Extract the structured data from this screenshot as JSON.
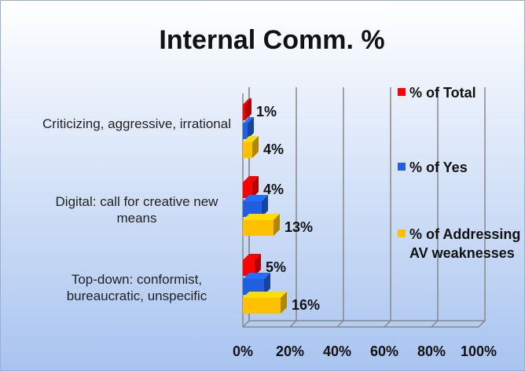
{
  "chart_data": {
    "type": "bar3d_horizontal",
    "title": "Internal Comm. %",
    "categories": [
      "Criticizing, aggressive, irrational",
      "Digital: call for creative new means",
      "Top-down: conformist, bureaucratic, unspecific"
    ],
    "series": [
      {
        "name": "% of Total",
        "color": "#ff0000",
        "values": [
          1,
          4,
          5
        ],
        "value_labels": [
          "1%",
          "4%",
          "5%"
        ]
      },
      {
        "name": "% of Yes",
        "color": "#1f5fe0",
        "values": [
          2,
          8,
          9
        ]
      },
      {
        "name": "% of Addressing AV weaknesses",
        "color": "#ffc000",
        "values": [
          4,
          13,
          16
        ],
        "value_labels": [
          "4%",
          "13%",
          "16%"
        ]
      }
    ],
    "xlim": [
      0,
      100
    ],
    "xticks": [
      {
        "value": 0,
        "label": "0%"
      },
      {
        "value": 20,
        "label": "20%"
      },
      {
        "value": 40,
        "label": "40%"
      },
      {
        "value": 60,
        "label": "60%"
      },
      {
        "value": 80,
        "label": "80%"
      },
      {
        "value": 100,
        "label": "100%"
      }
    ],
    "grid": true,
    "legend": "right"
  }
}
